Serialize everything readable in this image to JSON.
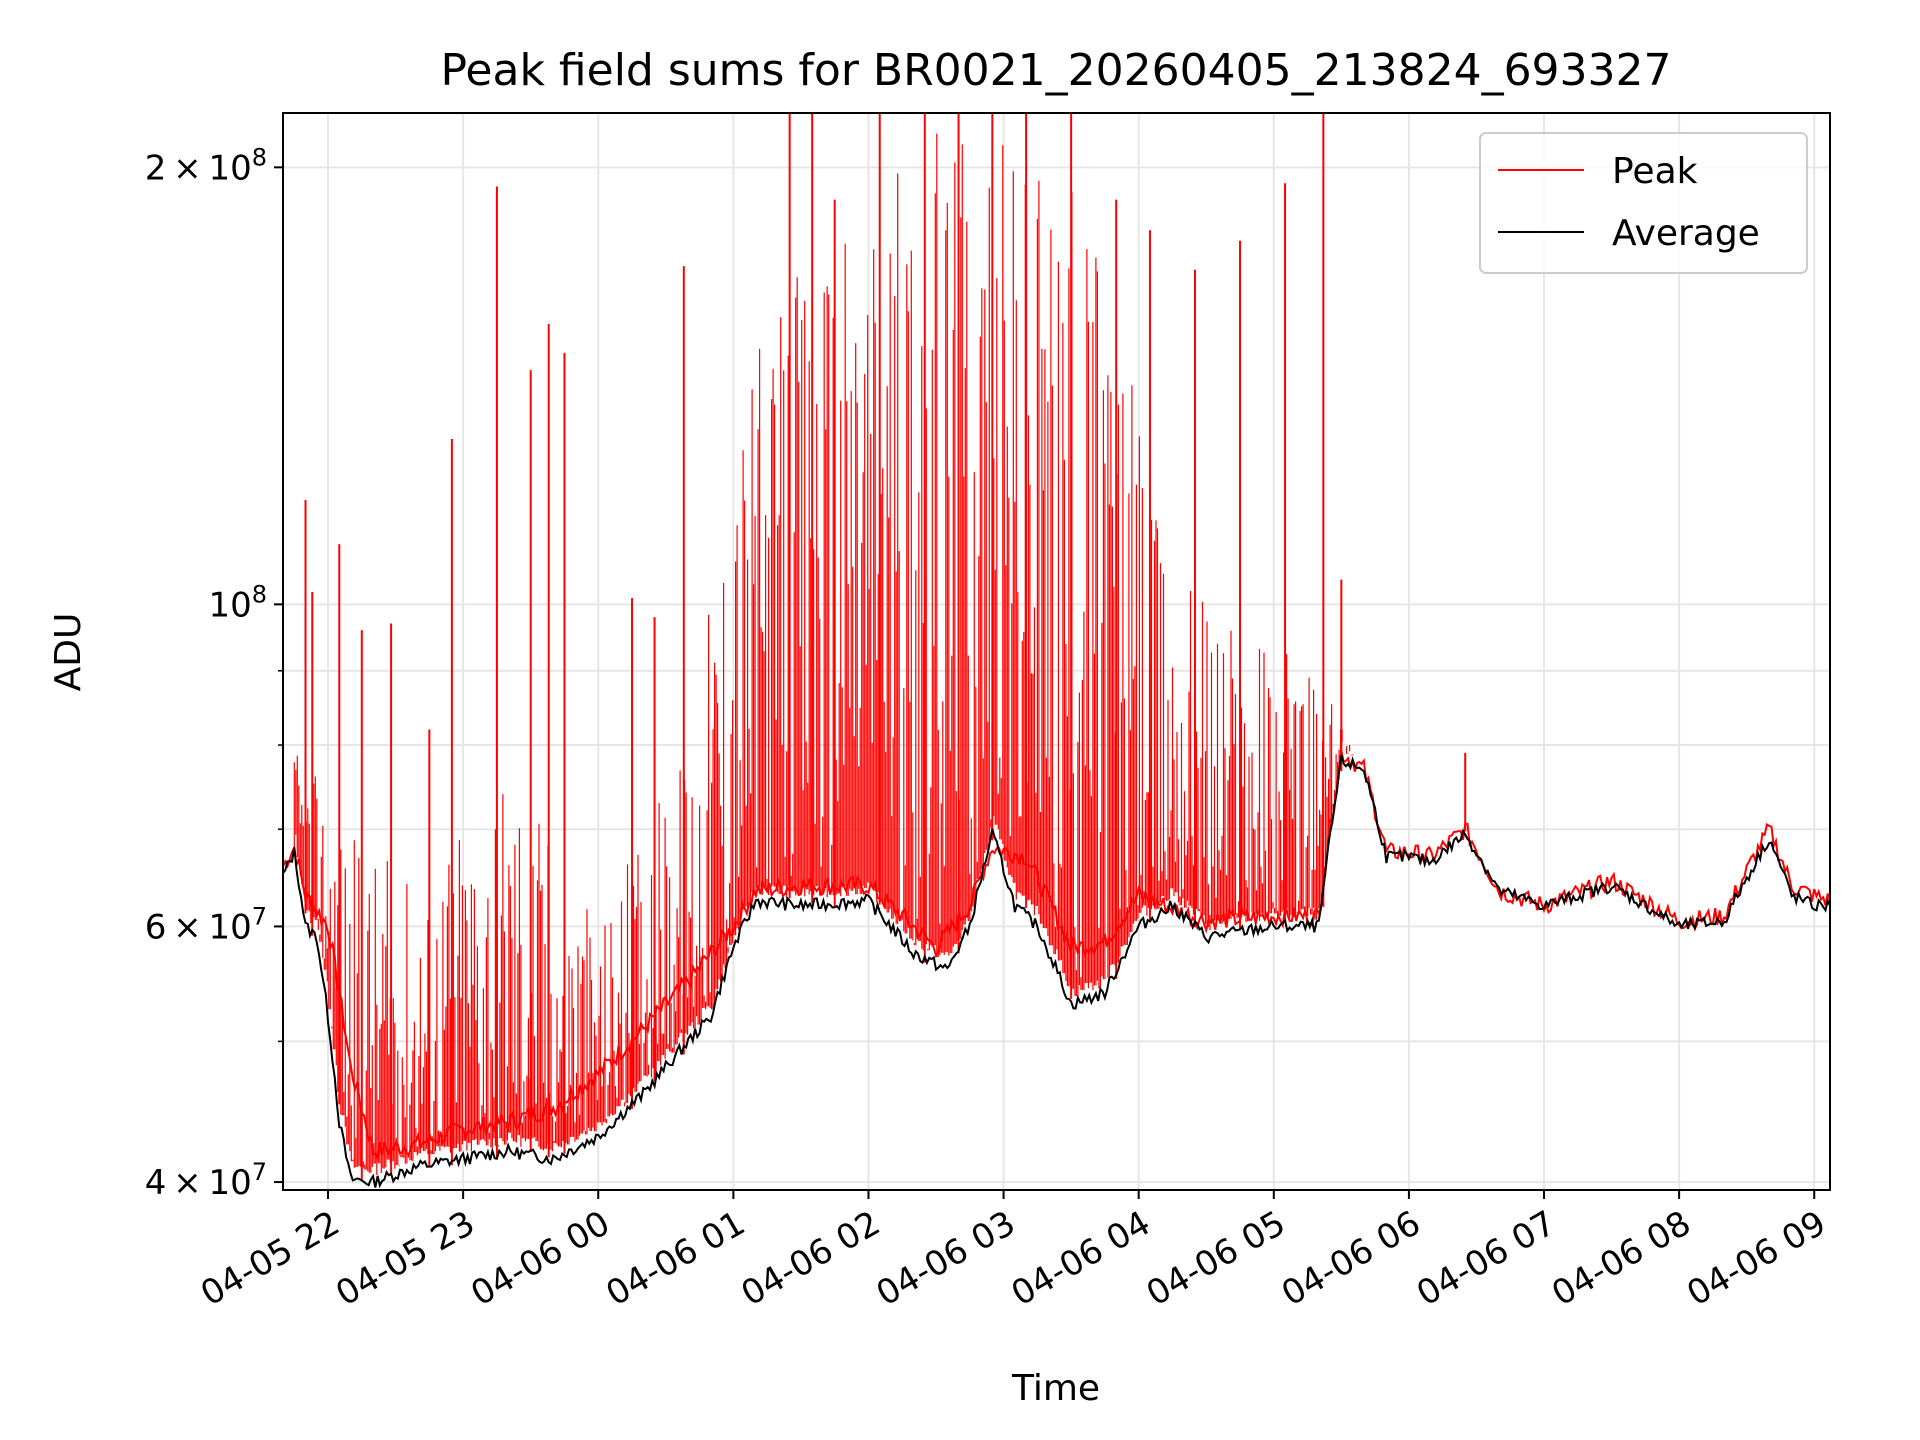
{
  "chart_data": {
    "type": "line",
    "title": "Peak field sums for BR0021_20260405_213824_693327",
    "xlabel": "Time",
    "ylabel": "ADU",
    "yscale": "log",
    "xlim": [
      "2026-04-05 21:40",
      "2026-04-06 09:07"
    ],
    "ylim": [
      39500000,
      218000000
    ],
    "grid": true,
    "legend": {
      "position": "top-right",
      "entries": [
        "Peak",
        "Average"
      ]
    },
    "x_ticks": [
      "04-05 22",
      "04-05 23",
      "04-06 00",
      "04-06 01",
      "04-06 02",
      "04-06 03",
      "04-06 04",
      "04-06 05",
      "04-06 06",
      "04-06 07",
      "04-06 08",
      "04-06 09"
    ],
    "x_tick_times": [
      "2026-04-05 22:00",
      "2026-04-05 23:00",
      "2026-04-06 00:00",
      "2026-04-06 01:00",
      "2026-04-06 02:00",
      "2026-04-06 03:00",
      "2026-04-06 04:00",
      "2026-04-06 05:00",
      "2026-04-06 06:00",
      "2026-04-06 07:00",
      "2026-04-06 08:00",
      "2026-04-06 09:00"
    ],
    "y_ticks": [
      {
        "value": 40000000,
        "mantissa": "4",
        "exponent": "7"
      },
      {
        "value": 60000000,
        "mantissa": "6",
        "exponent": "7"
      },
      {
        "value": 100000000,
        "mantissa": "",
        "exponent": "8"
      },
      {
        "value": 200000000,
        "mantissa": "2",
        "exponent": "8"
      }
    ],
    "y_minor_ticks": [
      50000000,
      70000000,
      80000000,
      90000000
    ],
    "series": [
      {
        "name": "Peak",
        "color": "#ff0000",
        "x": [
          "2026-04-05 21:40",
          "2026-04-05 21:45",
          "2026-04-05 21:50",
          "2026-04-05 22:00",
          "2026-04-05 22:10",
          "2026-04-05 22:20",
          "2026-04-05 22:40",
          "2026-04-05 23:00",
          "2026-04-05 23:20",
          "2026-04-05 23:40",
          "2026-04-06 00:00",
          "2026-04-06 00:20",
          "2026-04-06 00:40",
          "2026-04-06 01:00",
          "2026-04-06 01:10",
          "2026-04-06 01:30",
          "2026-04-06 02:00",
          "2026-04-06 02:30",
          "2026-04-06 02:45",
          "2026-04-06 02:55",
          "2026-04-06 03:10",
          "2026-04-06 03:30",
          "2026-04-06 03:45",
          "2026-04-06 04:00",
          "2026-04-06 04:30",
          "2026-04-06 05:00",
          "2026-04-06 05:20",
          "2026-04-06 05:30",
          "2026-04-06 05:40",
          "2026-04-06 05:50",
          "2026-04-06 06:00",
          "2026-04-06 06:10",
          "2026-04-06 06:25",
          "2026-04-06 06:40",
          "2026-04-06 07:00",
          "2026-04-06 07:30",
          "2026-04-06 08:00",
          "2026-04-06 08:20",
          "2026-04-06 08:40",
          "2026-04-06 08:50",
          "2026-04-06 09:00",
          "2026-04-06 09:07"
        ],
        "y": [
          66000000,
          68000000,
          63000000,
          60000000,
          48000000,
          42000000,
          42500000,
          43500000,
          44000000,
          45000000,
          47500000,
          51000000,
          55000000,
          60000000,
          63500000,
          64000000,
          64000000,
          58000000,
          62000000,
          68000000,
          67000000,
          58000000,
          58500000,
          63000000,
          60500000,
          61000000,
          61000000,
          79000000,
          77000000,
          67500000,
          67500000,
          67000000,
          70000000,
          63500000,
          62000000,
          64500000,
          60500000,
          61000000,
          70000000,
          64000000,
          63000000,
          62500000
        ],
        "spikes": [
          {
            "t": "2026-04-05 21:50",
            "v": 118000000
          },
          {
            "t": "2026-04-05 21:53",
            "v": 102000000
          },
          {
            "t": "2026-04-05 22:05",
            "v": 110000000
          },
          {
            "t": "2026-04-05 22:15",
            "v": 96000000
          },
          {
            "t": "2026-04-05 22:28",
            "v": 97000000
          },
          {
            "t": "2026-04-05 22:45",
            "v": 82000000
          },
          {
            "t": "2026-04-05 22:55",
            "v": 130000000
          },
          {
            "t": "2026-04-05 23:15",
            "v": 194000000
          },
          {
            "t": "2026-04-05 23:30",
            "v": 145000000
          },
          {
            "t": "2026-04-05 23:38",
            "v": 156000000
          },
          {
            "t": "2026-04-05 23:45",
            "v": 149000000
          },
          {
            "t": "2026-04-06 00:15",
            "v": 101000000
          },
          {
            "t": "2026-04-06 00:25",
            "v": 98000000
          },
          {
            "t": "2026-04-06 00:38",
            "v": 171000000
          },
          {
            "t": "2026-04-06 01:25",
            "v": 218000000
          },
          {
            "t": "2026-04-06 01:35",
            "v": 218000000
          },
          {
            "t": "2026-04-06 01:45",
            "v": 190000000
          },
          {
            "t": "2026-04-06 02:05",
            "v": 218000000
          },
          {
            "t": "2026-04-06 02:25",
            "v": 218000000
          },
          {
            "t": "2026-04-06 02:40",
            "v": 218000000
          },
          {
            "t": "2026-04-06 02:55",
            "v": 218000000
          },
          {
            "t": "2026-04-06 03:10",
            "v": 218000000
          },
          {
            "t": "2026-04-06 03:30",
            "v": 218000000
          },
          {
            "t": "2026-04-06 03:50",
            "v": 190000000
          },
          {
            "t": "2026-04-06 04:05",
            "v": 181000000
          },
          {
            "t": "2026-04-06 04:25",
            "v": 170000000
          },
          {
            "t": "2026-04-06 04:45",
            "v": 178000000
          },
          {
            "t": "2026-04-06 05:05",
            "v": 195000000
          },
          {
            "t": "2026-04-06 05:22",
            "v": 218000000
          },
          {
            "t": "2026-04-06 05:30",
            "v": 104000000
          },
          {
            "t": "2026-04-06 06:25",
            "v": 79000000
          }
        ]
      },
      {
        "name": "Average",
        "color": "#000000",
        "x": [
          "2026-04-05 21:40",
          "2026-04-05 21:45",
          "2026-04-05 21:50",
          "2026-04-05 21:55",
          "2026-04-05 22:00",
          "2026-04-05 22:05",
          "2026-04-05 22:10",
          "2026-04-05 22:20",
          "2026-04-05 22:40",
          "2026-04-05 23:00",
          "2026-04-05 23:20",
          "2026-04-05 23:40",
          "2026-04-06 00:00",
          "2026-04-06 00:20",
          "2026-04-06 00:40",
          "2026-04-06 00:50",
          "2026-04-06 01:00",
          "2026-04-06 01:10",
          "2026-04-06 01:30",
          "2026-04-06 02:00",
          "2026-04-06 02:20",
          "2026-04-06 02:35",
          "2026-04-06 02:45",
          "2026-04-06 02:55",
          "2026-04-06 03:05",
          "2026-04-06 03:15",
          "2026-04-06 03:30",
          "2026-04-06 03:45",
          "2026-04-06 04:00",
          "2026-04-06 04:15",
          "2026-04-06 04:30",
          "2026-04-06 05:00",
          "2026-04-06 05:20",
          "2026-04-06 05:30",
          "2026-04-06 05:40",
          "2026-04-06 05:50",
          "2026-04-06 06:00",
          "2026-04-06 06:10",
          "2026-04-06 06:25",
          "2026-04-06 06:40",
          "2026-04-06 07:00",
          "2026-04-06 07:30",
          "2026-04-06 08:00",
          "2026-04-06 08:20",
          "2026-04-06 08:40",
          "2026-04-06 08:50",
          "2026-04-06 09:00",
          "2026-04-06 09:07"
        ],
        "y": [
          65000000,
          67500000,
          60000000,
          59000000,
          52000000,
          44000000,
          40200000,
          40000000,
          41000000,
          41500000,
          42000000,
          41500000,
          43000000,
          46000000,
          50000000,
          52000000,
          58000000,
          62500000,
          62000000,
          62500000,
          57500000,
          56000000,
          60000000,
          69500000,
          62000000,
          60000000,
          53000000,
          54000000,
          60000000,
          62000000,
          59000000,
          60000000,
          60000000,
          78000000,
          77000000,
          67000000,
          67000000,
          66500000,
          69500000,
          63500000,
          62000000,
          64000000,
          60000000,
          60500000,
          69000000,
          63000000,
          62000000,
          62000000
        ]
      }
    ]
  }
}
